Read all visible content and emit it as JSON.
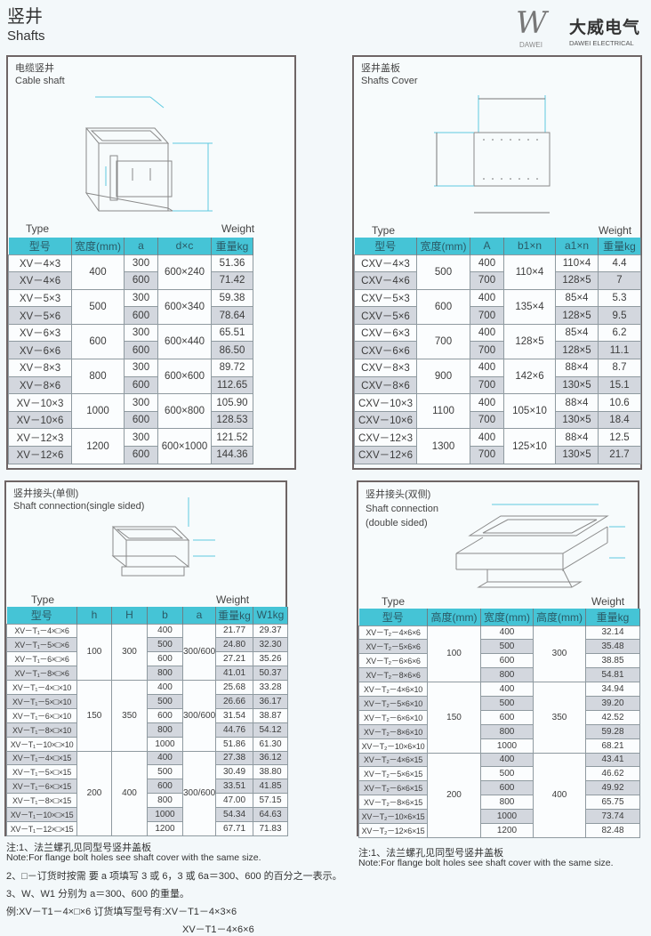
{
  "header": {
    "title_cn": "竖井",
    "title_en": "Shafts",
    "logo_cn": "大威电气",
    "logo_en": "DAWEI ELECTRICAL",
    "logo_sub": "DAWEI",
    "logo_mark": "W"
  },
  "colors": {
    "header_cyan": "#45c4d6",
    "row_grey": "#d3d7de",
    "dimension_line": "#5fc9e0"
  },
  "cable_shaft": {
    "title_cn": "电缆竖井",
    "title_en": "Cable shaft",
    "type_label": "Type",
    "weight_label": "Weight",
    "columns": [
      "型号",
      "宽度(mm)",
      "a",
      "d×c",
      "重量kg"
    ],
    "groups": [
      {
        "width": "400",
        "dxc": "600×240",
        "rows": [
          {
            "type": "XV－4×3",
            "a": "300",
            "w": "51.36"
          },
          {
            "type": "XV－4×6",
            "a": "600",
            "w": "71.42"
          }
        ]
      },
      {
        "width": "500",
        "dxc": "600×340",
        "rows": [
          {
            "type": "XV－5×3",
            "a": "300",
            "w": "59.38"
          },
          {
            "type": "XV－5×6",
            "a": "600",
            "w": "78.64"
          }
        ]
      },
      {
        "width": "600",
        "dxc": "600×440",
        "rows": [
          {
            "type": "XV－6×3",
            "a": "300",
            "w": "65.51"
          },
          {
            "type": "XV－6×6",
            "a": "600",
            "w": "86.50"
          }
        ]
      },
      {
        "width": "800",
        "dxc": "600×600",
        "rows": [
          {
            "type": "XV－8×3",
            "a": "300",
            "w": "89.72"
          },
          {
            "type": "XV－8×6",
            "a": "600",
            "w": "112.65"
          }
        ]
      },
      {
        "width": "1000",
        "dxc": "600×800",
        "rows": [
          {
            "type": "XV－10×3",
            "a": "300",
            "w": "105.90"
          },
          {
            "type": "XV－10×6",
            "a": "600",
            "w": "128.53"
          }
        ]
      },
      {
        "width": "1200",
        "dxc": "600×1000",
        "rows": [
          {
            "type": "XV－12×3",
            "a": "300",
            "w": "121.52"
          },
          {
            "type": "XV－12×6",
            "a": "600",
            "w": "144.36"
          }
        ]
      }
    ]
  },
  "shafts_cover": {
    "title_cn": "竖井盖板",
    "title_en": "Shafts Cover",
    "type_label": "Type",
    "weight_label": "Weight",
    "columns": [
      "型号",
      "宽度(mm)",
      "A",
      "b1×n",
      "a1×n",
      "重量kg"
    ],
    "groups": [
      {
        "width": "500",
        "b1n": "110×4",
        "rows": [
          {
            "type": "CXV－4×3",
            "A": "400",
            "a1n": "110×4",
            "w": "4.4"
          },
          {
            "type": "CXV－4×6",
            "A": "700",
            "a1n": "128×5",
            "w": "7"
          }
        ]
      },
      {
        "width": "600",
        "b1n": "135×4",
        "rows": [
          {
            "type": "CXV－5×3",
            "A": "400",
            "a1n": "85×4",
            "w": "5.3"
          },
          {
            "type": "CXV－5×6",
            "A": "700",
            "a1n": "128×5",
            "w": "9.5"
          }
        ]
      },
      {
        "width": "700",
        "b1n": "128×5",
        "rows": [
          {
            "type": "CXV－6×3",
            "A": "400",
            "a1n": "85×4",
            "w": "6.2"
          },
          {
            "type": "CXV－6×6",
            "A": "700",
            "a1n": "128×5",
            "w": "11.1"
          }
        ]
      },
      {
        "width": "900",
        "b1n": "142×6",
        "rows": [
          {
            "type": "CXV－8×3",
            "A": "400",
            "a1n": "88×4",
            "w": "8.7"
          },
          {
            "type": "CXV－8×6",
            "A": "700",
            "a1n": "130×5",
            "w": "15.1"
          }
        ]
      },
      {
        "width": "1100",
        "b1n": "105×10",
        "rows": [
          {
            "type": "CXV－10×3",
            "A": "400",
            "a1n": "88×4",
            "w": "10.6"
          },
          {
            "type": "CXV－10×6",
            "A": "700",
            "a1n": "130×5",
            "w": "18.4"
          }
        ]
      },
      {
        "width": "1300",
        "b1n": "125×10",
        "rows": [
          {
            "type": "CXV－12×3",
            "A": "400",
            "a1n": "88×4",
            "w": "12.5"
          },
          {
            "type": "CXV－12×6",
            "A": "700",
            "a1n": "130×5",
            "w": "21.7"
          }
        ]
      }
    ]
  },
  "single_sided": {
    "title_cn": "竖井接头(单侧)",
    "title_en": "Shaft connection(single sided)",
    "type_label": "Type",
    "weight_label": "Weight",
    "columns": [
      "型号",
      "h",
      "H",
      "b",
      "a",
      "重量kg",
      "W1kg"
    ],
    "groups": [
      {
        "h": "100",
        "H": "300",
        "a": "300/600",
        "rows": [
          {
            "type": "XV－T₁－4×□×6",
            "b": "400",
            "w": "21.77",
            "w1": "29.37"
          },
          {
            "type": "XV－T₁－5×□×6",
            "b": "500",
            "w": "24.80",
            "w1": "32.30"
          },
          {
            "type": "XV－T₁－6×□×6",
            "b": "600",
            "w": "27.21",
            "w1": "35.26"
          },
          {
            "type": "XV－T₁－8×□×6",
            "b": "800",
            "w": "41.01",
            "w1": "50.37"
          }
        ]
      },
      {
        "h": "150",
        "H": "350",
        "a": "300/600",
        "rows": [
          {
            "type": "XV－T₁－4×□×10",
            "b": "400",
            "w": "25.68",
            "w1": "33.28"
          },
          {
            "type": "XV－T₁－5×□×10",
            "b": "500",
            "w": "26.66",
            "w1": "36.17"
          },
          {
            "type": "XV－T₁－6×□×10",
            "b": "600",
            "w": "31.54",
            "w1": "38.87"
          },
          {
            "type": "XV－T₁－8×□×10",
            "b": "800",
            "w": "44.76",
            "w1": "54.12"
          },
          {
            "type": "XV－T₁－10×□×10",
            "b": "1000",
            "w": "51.86",
            "w1": "61.30"
          }
        ]
      },
      {
        "h": "200",
        "H": "400",
        "a": "300/600",
        "rows": [
          {
            "type": "XV－T₁－4×□×15",
            "b": "400",
            "w": "27.38",
            "w1": "36.12"
          },
          {
            "type": "XV－T₁－5×□×15",
            "b": "500",
            "w": "30.49",
            "w1": "38.80"
          },
          {
            "type": "XV－T₁－6×□×15",
            "b": "600",
            "w": "33.51",
            "w1": "41.85"
          },
          {
            "type": "XV－T₁－8×□×15",
            "b": "800",
            "w": "47.00",
            "w1": "57.15"
          },
          {
            "type": "XV－T₁－10×□×15",
            "b": "1000",
            "w": "54.34",
            "w1": "64.63"
          },
          {
            "type": "XV－T₁－12×□×15",
            "b": "1200",
            "w": "67.71",
            "w1": "71.83"
          }
        ]
      }
    ]
  },
  "double_sided": {
    "title_cn": "竖井接头(双侧)",
    "title_en_1": "Shaft connection",
    "title_en_2": "(double sided)",
    "type_label": "Type",
    "weight_label": "Weight",
    "columns": [
      "型号",
      "高度(mm)",
      "宽度(mm)",
      "高度(mm)",
      "重量kg"
    ],
    "groups": [
      {
        "h": "100",
        "H": "300",
        "rows": [
          {
            "type": "XV－T₂－4×6×6",
            "b": "400",
            "w": "32.14"
          },
          {
            "type": "XV－T₂－5×6×6",
            "b": "500",
            "w": "35.48"
          },
          {
            "type": "XV－T₂－6×6×6",
            "b": "600",
            "w": "38.85"
          },
          {
            "type": "XV－T₂－8×6×6",
            "b": "800",
            "w": "54.81"
          }
        ]
      },
      {
        "h": "150",
        "H": "350",
        "rows": [
          {
            "type": "XV－T₂－4×6×10",
            "b": "400",
            "w": "34.94"
          },
          {
            "type": "XV－T₂－5×6×10",
            "b": "500",
            "w": "39.20"
          },
          {
            "type": "XV－T₂－6×6×10",
            "b": "600",
            "w": "42.52"
          },
          {
            "type": "XV－T₂－8×6×10",
            "b": "800",
            "w": "59.28"
          },
          {
            "type": "XV－T₂－10×6×10",
            "b": "1000",
            "w": "68.21"
          }
        ]
      },
      {
        "h": "200",
        "H": "400",
        "rows": [
          {
            "type": "XV－T₂－4×6×15",
            "b": "400",
            "w": "43.41"
          },
          {
            "type": "XV－T₂－5×6×15",
            "b": "500",
            "w": "46.62"
          },
          {
            "type": "XV－T₂－6×6×15",
            "b": "600",
            "w": "49.92"
          },
          {
            "type": "XV－T₂－8×6×15",
            "b": "800",
            "w": "65.75"
          },
          {
            "type": "XV－T₂－10×6×15",
            "b": "1000",
            "w": "73.74"
          },
          {
            "type": "XV－T₂－12×6×15",
            "b": "1200",
            "w": "82.48"
          }
        ]
      }
    ]
  },
  "notes_left": [
    "注:1、法兰螺孔见同型号竖井盖板",
    "Note:For flange bolt holes see shaft cover with the same size.",
    "2、□－订货时按需 要 a 项填写 3 或 6，3 或 6a＝300、600 的百分之一表示。",
    "3、W、W1 分别为 a＝300、600 的重量。",
    "例:XV－T1－4×□×6  订货填写型号有:XV－T1－4×3×6",
    "XV－T1－4×6×6"
  ],
  "notes_right": [
    "注:1、法兰螺孔见同型号竖井盖板",
    "Note:For flange bolt holes see shaft cover with the same size."
  ]
}
